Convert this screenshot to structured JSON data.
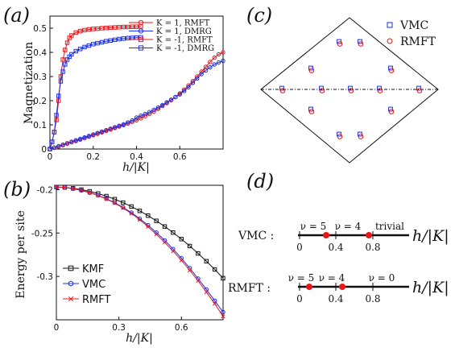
{
  "panels": {
    "a": "(a)",
    "b": "(b)",
    "c": "(c)",
    "d": "(d)"
  },
  "chart_data": [
    {
      "id": "a",
      "type": "line",
      "xlabel": "h/|K|",
      "ylabel": "Magnetization",
      "xlim": [
        0,
        0.8
      ],
      "ylim": [
        0,
        0.55
      ],
      "xticks": [
        "0",
        "0.2",
        "0.4",
        "0.6"
      ],
      "yticks": [
        "0",
        "0.1",
        "0.2",
        "0.3",
        "0.4",
        "0.5"
      ],
      "legend_position": "top-right",
      "series": [
        {
          "name": "K = 1, RMFT",
          "color": "#e8151b",
          "marker": "circle",
          "x": [
            0,
            0.02,
            0.04,
            0.06,
            0.08,
            0.1,
            0.12,
            0.14,
            0.16,
            0.18,
            0.2,
            0.22,
            0.24,
            0.26,
            0.28,
            0.3,
            0.32,
            0.34,
            0.36,
            0.38,
            0.4,
            0.42,
            0.44,
            0.46,
            0.48,
            0.5,
            0.52,
            0.54,
            0.56,
            0.58,
            0.6,
            0.62,
            0.64,
            0.66,
            0.68,
            0.7,
            0.72,
            0.74,
            0.76,
            0.78,
            0.8
          ],
          "y": [
            0,
            0.005,
            0.01,
            0.016,
            0.022,
            0.028,
            0.033,
            0.039,
            0.045,
            0.051,
            0.057,
            0.063,
            0.069,
            0.075,
            0.081,
            0.087,
            0.093,
            0.099,
            0.105,
            0.112,
            0.119,
            0.127,
            0.136,
            0.145,
            0.155,
            0.166,
            0.178,
            0.19,
            0.202,
            0.215,
            0.23,
            0.246,
            0.263,
            0.281,
            0.3,
            0.32,
            0.34,
            0.36,
            0.378,
            0.392,
            0.4
          ]
        },
        {
          "name": "K = 1, DMRG",
          "color": "#1a2ee8",
          "marker": "circle",
          "x": [
            0,
            0.02,
            0.04,
            0.06,
            0.08,
            0.1,
            0.12,
            0.14,
            0.16,
            0.18,
            0.2,
            0.22,
            0.24,
            0.26,
            0.28,
            0.3,
            0.32,
            0.34,
            0.36,
            0.38,
            0.4,
            0.42,
            0.44,
            0.46,
            0.48,
            0.5,
            0.52,
            0.54,
            0.56,
            0.58,
            0.6,
            0.62,
            0.64,
            0.66,
            0.68,
            0.7,
            0.72,
            0.74,
            0.76,
            0.78,
            0.8
          ],
          "y": [
            0,
            0.006,
            0.012,
            0.018,
            0.024,
            0.03,
            0.036,
            0.042,
            0.048,
            0.054,
            0.06,
            0.066,
            0.072,
            0.078,
            0.084,
            0.09,
            0.096,
            0.102,
            0.11,
            0.118,
            0.13,
            0.138,
            0.145,
            0.153,
            0.162,
            0.172,
            0.182,
            0.193,
            0.204,
            0.215,
            0.226,
            0.24,
            0.256,
            0.274,
            0.292,
            0.31,
            0.325,
            0.338,
            0.35,
            0.358,
            0.365
          ]
        },
        {
          "name": "K = -1, RMFT",
          "color": "#e8151b",
          "marker": "square",
          "x": [
            0,
            0.01,
            0.02,
            0.03,
            0.04,
            0.05,
            0.06,
            0.07,
            0.08,
            0.09,
            0.1,
            0.12,
            0.14,
            0.16,
            0.18,
            0.2,
            0.22,
            0.24,
            0.26,
            0.28,
            0.3,
            0.32,
            0.34,
            0.36,
            0.38,
            0.4,
            0.42
          ],
          "y": [
            0,
            0.03,
            0.07,
            0.12,
            0.2,
            0.3,
            0.37,
            0.41,
            0.44,
            0.46,
            0.47,
            0.482,
            0.488,
            0.492,
            0.495,
            0.497,
            0.498,
            0.5,
            0.501,
            0.502,
            0.503,
            0.504,
            0.505,
            0.505,
            0.506,
            0.506,
            0.507
          ]
        },
        {
          "name": "K = -1, DMRG",
          "color": "#1a2ee8",
          "marker": "square",
          "x": [
            0,
            0.01,
            0.02,
            0.03,
            0.04,
            0.05,
            0.06,
            0.07,
            0.08,
            0.09,
            0.1,
            0.12,
            0.14,
            0.16,
            0.18,
            0.2,
            0.22,
            0.24,
            0.26,
            0.28,
            0.3,
            0.32,
            0.34,
            0.36,
            0.38,
            0.4,
            0.42
          ],
          "y": [
            0,
            0.03,
            0.07,
            0.14,
            0.22,
            0.28,
            0.32,
            0.35,
            0.37,
            0.382,
            0.392,
            0.405,
            0.414,
            0.422,
            0.428,
            0.434,
            0.438,
            0.442,
            0.446,
            0.449,
            0.452,
            0.455,
            0.457,
            0.459,
            0.46,
            0.461,
            0.462
          ]
        }
      ]
    },
    {
      "id": "b",
      "type": "line",
      "xlabel": "h/|K|",
      "ylabel": "Energy per site",
      "xlim": [
        0,
        0.8
      ],
      "ylim": [
        -0.35,
        -0.195
      ],
      "xticks": [
        "0",
        "0.3",
        "0.6"
      ],
      "yticks": [
        "-0.2",
        "-0.25",
        "-0.3"
      ],
      "legend_position": "bottom-left",
      "series": [
        {
          "name": "KMF",
          "color": "#111111",
          "marker": "square",
          "x": [
            0,
            0.04,
            0.08,
            0.12,
            0.16,
            0.2,
            0.24,
            0.28,
            0.32,
            0.36,
            0.4,
            0.44,
            0.48,
            0.52,
            0.56,
            0.6,
            0.64,
            0.68,
            0.72,
            0.76,
            0.8
          ],
          "y": [
            -0.197,
            -0.1975,
            -0.1985,
            -0.2,
            -0.202,
            -0.2045,
            -0.2075,
            -0.211,
            -0.215,
            -0.2195,
            -0.2245,
            -0.23,
            -0.236,
            -0.2425,
            -0.2495,
            -0.257,
            -0.265,
            -0.2735,
            -0.2825,
            -0.292,
            -0.302
          ]
        },
        {
          "name": "VMC",
          "color": "#1a2ee8",
          "marker": "circle",
          "x": [
            0,
            0.04,
            0.08,
            0.12,
            0.16,
            0.2,
            0.24,
            0.28,
            0.32,
            0.36,
            0.4,
            0.44,
            0.48,
            0.52,
            0.56,
            0.6,
            0.64,
            0.68,
            0.72,
            0.76,
            0.8
          ],
          "y": [
            -0.197,
            -0.1975,
            -0.199,
            -0.201,
            -0.2035,
            -0.2065,
            -0.2105,
            -0.215,
            -0.2205,
            -0.2265,
            -0.2335,
            -0.241,
            -0.2495,
            -0.2585,
            -0.2685,
            -0.279,
            -0.2905,
            -0.3025,
            -0.315,
            -0.328,
            -0.341
          ]
        },
        {
          "name": "RMFT",
          "color": "#e8151b",
          "marker": "cross",
          "x": [
            0,
            0.04,
            0.08,
            0.12,
            0.16,
            0.2,
            0.24,
            0.28,
            0.32,
            0.36,
            0.4,
            0.44,
            0.48,
            0.52,
            0.56,
            0.6,
            0.64,
            0.68,
            0.72,
            0.76,
            0.8
          ],
          "y": [
            -0.197,
            -0.1975,
            -0.1988,
            -0.2008,
            -0.2035,
            -0.2068,
            -0.2108,
            -0.2155,
            -0.2212,
            -0.2275,
            -0.2348,
            -0.2428,
            -0.2515,
            -0.2608,
            -0.2708,
            -0.2815,
            -0.293,
            -0.305,
            -0.318,
            -0.3315,
            -0.346
          ]
        }
      ]
    },
    {
      "id": "c",
      "type": "scatter",
      "legend_position": "top-right",
      "series": [
        {
          "name": "VMC",
          "color": "#1a2ee8",
          "marker": "square"
        },
        {
          "name": "RMFT",
          "color": "#e8151b",
          "marker": "circle"
        }
      ]
    },
    {
      "id": "d",
      "type": "phase-diagram",
      "rows": [
        {
          "label": "VMC :",
          "tick_labels": [
            "0",
            "0.4",
            "0.8"
          ],
          "phase_labels": [
            "ν = 5",
            "ν = 4",
            "trivial"
          ],
          "axis_label": "h/|K|"
        },
        {
          "label": "RMFT :",
          "tick_labels": [
            "0",
            "0.4",
            "0.8"
          ],
          "phase_labels": [
            "ν = 5",
            "ν = 4",
            "ν = 0"
          ],
          "axis_label": "h/|K|"
        }
      ]
    }
  ]
}
